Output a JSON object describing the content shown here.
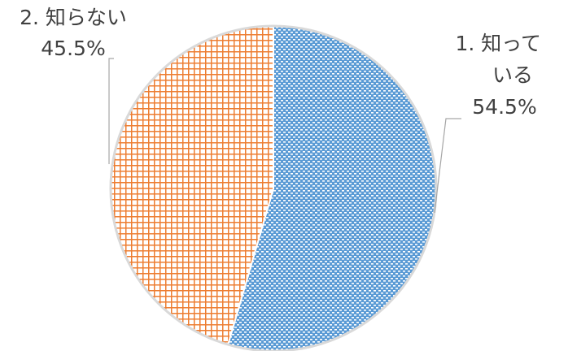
{
  "chart_data": {
    "type": "pie",
    "title": "",
    "slices": [
      {
        "label": "1. 知って\nいる",
        "value": 54.5,
        "value_label": "54.5%",
        "color": "#5b9bd5",
        "pattern": "dotted"
      },
      {
        "label": "2. 知らない",
        "value": 45.5,
        "value_label": "45.5%",
        "color": "#ed7d31",
        "pattern": "grid"
      }
    ]
  }
}
